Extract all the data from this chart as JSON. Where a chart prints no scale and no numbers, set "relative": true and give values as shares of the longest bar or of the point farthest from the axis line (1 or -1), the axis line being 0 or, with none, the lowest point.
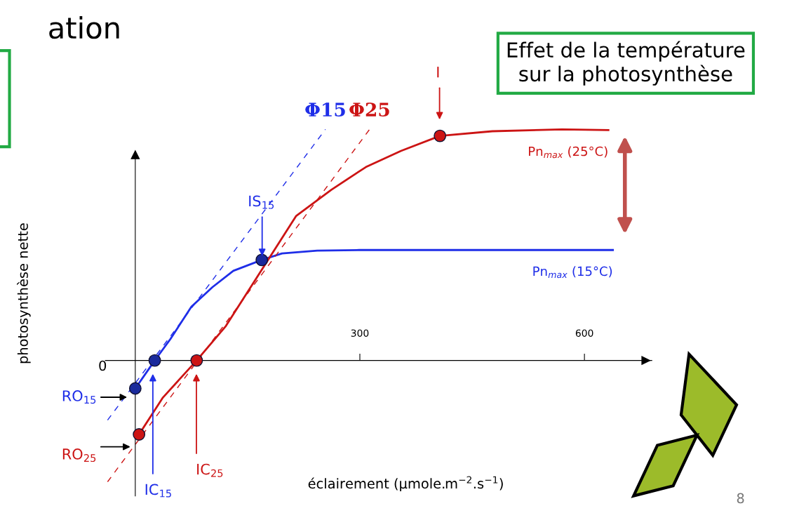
{
  "chart_data": {
    "type": "line",
    "relative": true,
    "xlabel": "éclairement (µmole.m$^{−2}$.s$^{−1}$)",
    "xlim": [
      -40,
      690
    ],
    "xticks": [
      300,
      600
    ],
    "grid": false,
    "series": [
      {
        "name": "Pn$_{max}$ (15°C)",
        "color": "#1f2ee8",
        "x": [
          0,
          26,
          47,
          75,
          103,
          131,
          169,
          196,
          243,
          299,
          383,
          477,
          638
        ],
        "values": [
          -0.121,
          0,
          0.093,
          0.233,
          0.317,
          0.388,
          0.435,
          0.463,
          0.475,
          0.478,
          0.478,
          0.478,
          0.478
        ]
      },
      {
        "name": "Pn$_{max}$ (25°C)",
        "color": "#cc1414",
        "x": [
          5,
          37,
          82,
          121,
          215,
          262,
          308,
          355,
          407,
          477,
          570,
          632
        ],
        "values": [
          -0.32,
          -0.16,
          0,
          0.149,
          0.626,
          0.739,
          0.837,
          0.907,
          0.972,
          0.992,
          1.0,
          0.997
        ]
      },
      {
        "name": "Φ15",
        "color": "#1f2ee8",
        "line_style": "dashed",
        "x": [
          -37,
          254
        ],
        "values": [
          -0.258,
          1.0
        ]
      },
      {
        "name": "Φ25",
        "color": "#cc1414",
        "line_style": "dashed",
        "x": [
          -37,
          313
        ],
        "values": [
          -0.525,
          1.0
        ]
      },
      {
        "type": "scatter",
        "marker": "circle",
        "color": "#1a2a9c",
        "x": [
          0,
          26,
          169
        ],
        "values": [
          -0.121,
          0,
          0.435
        ]
      },
      {
        "type": "scatter",
        "marker": "circle",
        "color": "#cc1414",
        "x": [
          5,
          82,
          407
        ],
        "values": [
          -0.32,
          0,
          0.972
        ]
      }
    ],
    "annotations": [
      "RO$_{15}$",
      "RO$_{25}$",
      "IC$_{15}$",
      "IC$_{25}$",
      "IS$_{15}$",
      "I",
      "photosynthèse nette",
      "0",
      "ation",
      "Effet de la température\nsur la photosynthèse",
      "8"
    ]
  }
}
